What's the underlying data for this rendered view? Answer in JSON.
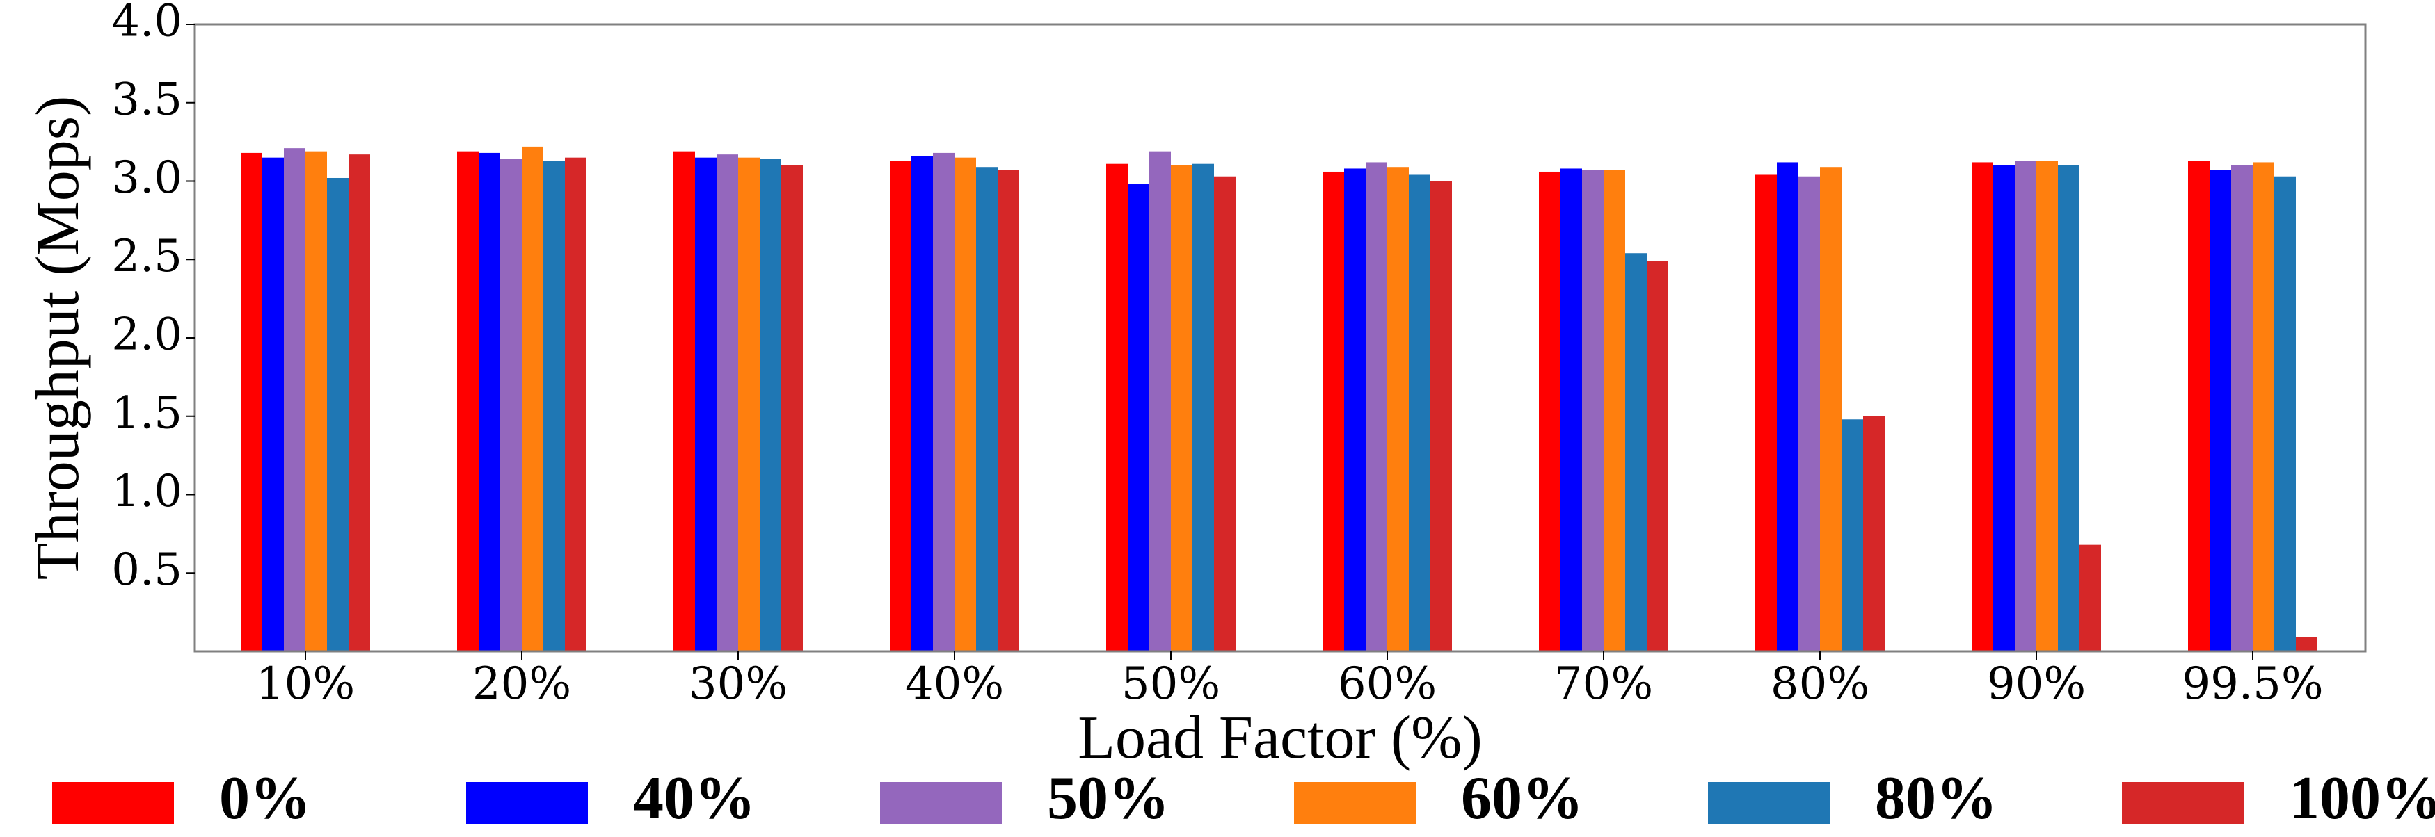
{
  "chart_data": {
    "type": "bar",
    "title": "",
    "xlabel": "Load Factor (%)",
    "ylabel": "Throughput (Mops)",
    "ylim": [
      0,
      4.0
    ],
    "yticks": [
      "0.5",
      "1.0",
      "1.5",
      "2.0",
      "2.5",
      "3.0",
      "3.5",
      "4.0"
    ],
    "ytick_values": [
      0.5,
      1.0,
      1.5,
      2.0,
      2.5,
      3.0,
      3.5,
      4.0
    ],
    "categories": [
      "10%",
      "20%",
      "30%",
      "40%",
      "50%",
      "60%",
      "70%",
      "80%",
      "90%",
      "99.5%"
    ],
    "grid": false,
    "legend_position": "bottom",
    "series": [
      {
        "name": "0%",
        "color": "#ff0000",
        "values": [
          3.18,
          3.19,
          3.19,
          3.13,
          3.11,
          3.06,
          3.06,
          3.04,
          3.12,
          3.13
        ]
      },
      {
        "name": "40%",
        "color": "#0000ff",
        "values": [
          3.15,
          3.18,
          3.15,
          3.16,
          2.98,
          3.08,
          3.08,
          3.12,
          3.1,
          3.07
        ]
      },
      {
        "name": "50%",
        "color": "#9467bd",
        "values": [
          3.21,
          3.14,
          3.17,
          3.18,
          3.19,
          3.12,
          3.07,
          3.03,
          3.13,
          3.1
        ]
      },
      {
        "name": "60%",
        "color": "#ff7f0e",
        "values": [
          3.19,
          3.22,
          3.15,
          3.15,
          3.1,
          3.09,
          3.07,
          3.09,
          3.13,
          3.12
        ]
      },
      {
        "name": "80%",
        "color": "#1f77b4",
        "values": [
          3.02,
          3.13,
          3.14,
          3.09,
          3.11,
          3.04,
          2.54,
          1.48,
          3.1,
          3.03
        ]
      },
      {
        "name": "100%",
        "color": "#d62728",
        "values": [
          3.17,
          3.15,
          3.1,
          3.07,
          3.03,
          3.0,
          2.49,
          1.5,
          0.68,
          0.09
        ]
      }
    ]
  }
}
